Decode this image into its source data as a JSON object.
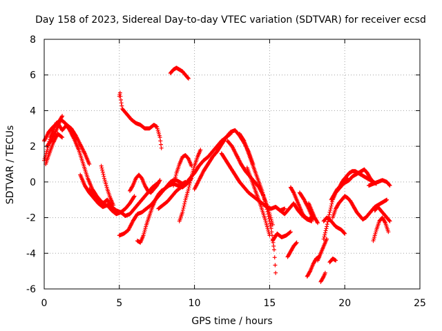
{
  "chart_data": {
    "type": "scatter",
    "title": "Day 158 of 2023, Sidereal Day-to-day VTEC variation (SDTVAR) for receiver ecsd",
    "xlabel": "GPS time / hours",
    "ylabel": "SDTVAR / TECUs",
    "xlim": [
      0,
      25
    ],
    "ylim": [
      -6,
      8
    ],
    "xticks": [
      "0",
      "5",
      "10",
      "15",
      "20",
      "25"
    ],
    "yticks": [
      "-6",
      "-4",
      "-2",
      "0",
      "2",
      "4",
      "6",
      "8"
    ],
    "grid": true,
    "marker": "+",
    "series": [
      {
        "name": "SDTVAR",
        "color": "#ff0000",
        "tracks": [
          {
            "x": [
              0.0,
              0.2,
              0.4,
              0.6,
              0.8,
              1.0,
              1.2
            ],
            "y": [
              1.2,
              1.8,
              2.5,
              2.9,
              3.3,
              3.4,
              3.7
            ]
          },
          {
            "x": [
              0.0,
              0.3,
              0.6,
              0.9,
              1.2,
              1.5,
              1.8,
              2.1,
              2.4,
              2.7,
              3.0
            ],
            "y": [
              2.3,
              2.8,
              3.1,
              3.3,
              2.9,
              3.2,
              3.0,
              2.6,
              2.1,
              1.6,
              1.0
            ]
          },
          {
            "x": [
              0.2,
              0.5,
              0.8,
              1.1,
              1.4,
              1.7,
              2.0,
              2.3,
              2.6,
              2.9,
              3.2,
              3.5,
              3.8,
              4.1,
              4.4
            ],
            "y": [
              2.0,
              2.4,
              2.9,
              3.5,
              3.3,
              2.9,
              2.4,
              1.8,
              1.0,
              0.2,
              -0.4,
              -0.8,
              -1.1,
              -1.3,
              -1.4
            ]
          },
          {
            "x": [
              0.1,
              0.3,
              0.6,
              0.9,
              1.2
            ],
            "y": [
              1.0,
              1.5,
              2.2,
              2.7,
              2.5
            ]
          },
          {
            "x": [
              2.4,
              2.7,
              3.0,
              3.3,
              3.6,
              3.9,
              4.2,
              4.5,
              4.8,
              5.1,
              5.4,
              5.7,
              6.0
            ],
            "y": [
              0.4,
              -0.2,
              -0.6,
              -0.9,
              -1.2,
              -1.4,
              -1.3,
              -1.6,
              -1.8,
              -1.7,
              -1.5,
              -1.2,
              -0.8
            ]
          },
          {
            "x": [
              3.0,
              3.3,
              3.6,
              3.9,
              4.2,
              4.5,
              4.8,
              5.1,
              5.4,
              5.7,
              6.0,
              6.3,
              6.6,
              6.9,
              7.2,
              7.5
            ],
            "y": [
              -0.4,
              -0.8,
              -1.0,
              -1.2,
              -1.0,
              -1.4,
              -1.6,
              -1.7,
              -1.9,
              -1.8,
              -1.5,
              -1.2,
              -0.9,
              -0.6,
              -0.3,
              -0.1
            ]
          },
          {
            "x": [
              3.8,
              4.0,
              4.2,
              4.4,
              4.6
            ],
            "y": [
              0.9,
              0.2,
              -0.4,
              -0.9,
              -1.3
            ]
          },
          {
            "x": [
              5.0,
              5.05,
              5.1,
              5.2,
              5.3,
              5.5,
              5.8,
              6.1,
              6.4,
              6.7,
              7.0,
              7.3,
              7.5,
              7.7,
              7.8
            ],
            "y": [
              4.8,
              5.0,
              4.6,
              4.1,
              4.0,
              3.8,
              3.5,
              3.3,
              3.2,
              3.0,
              3.0,
              3.2,
              3.1,
              2.5,
              1.9
            ]
          },
          {
            "x": [
              8.4,
              8.6,
              8.8,
              9.0,
              9.2,
              9.4,
              9.6
            ],
            "y": [
              6.1,
              6.3,
              6.4,
              6.3,
              6.2,
              6.0,
              5.8
            ]
          },
          {
            "x": [
              5.0,
              5.3,
              5.6,
              5.9,
              6.2,
              6.5,
              6.8,
              7.1,
              7.4,
              7.7,
              8.0,
              8.3,
              8.6,
              8.9,
              9.2,
              9.5,
              9.8
            ],
            "y": [
              -3.0,
              -2.9,
              -2.7,
              -2.2,
              -1.8,
              -1.7,
              -1.5,
              -1.3,
              -1.0,
              -0.7,
              -0.4,
              -0.2,
              -0.1,
              -0.2,
              -0.3,
              -0.1,
              0.2
            ]
          },
          {
            "x": [
              6.2,
              6.4,
              6.6,
              6.8,
              7.0,
              7.2,
              7.4,
              7.6,
              7.8,
              8.0,
              8.2,
              8.4,
              8.6,
              8.8,
              9.0,
              9.2,
              9.4
            ],
            "y": [
              -3.3,
              -3.4,
              -3.0,
              -2.4,
              -1.9,
              -1.4,
              -1.0,
              -0.7,
              -0.5,
              -0.4,
              -0.2,
              0.0,
              0.1,
              0.1,
              0.0,
              -0.1,
              0.0
            ]
          },
          {
            "x": [
              5.7,
              5.9,
              6.1,
              6.3,
              6.5,
              6.7,
              6.9,
              7.1,
              7.3,
              7.5,
              7.7
            ],
            "y": [
              -0.5,
              -0.2,
              0.2,
              0.4,
              0.2,
              -0.2,
              -0.5,
              -0.6,
              -0.4,
              -0.2,
              0.1
            ]
          },
          {
            "x": [
              7.6,
              7.9,
              8.2,
              8.5,
              8.8,
              9.1,
              9.4,
              9.7,
              10.0,
              10.3,
              10.6,
              10.9,
              11.2,
              11.5,
              11.8,
              12.1,
              12.4
            ],
            "y": [
              -1.5,
              -1.3,
              -1.1,
              -0.8,
              -0.5,
              -0.3,
              -0.1,
              0.2,
              0.5,
              0.9,
              1.2,
              1.4,
              1.7,
              2.0,
              2.3,
              2.5,
              2.7
            ]
          },
          {
            "x": [
              9.0,
              9.2,
              9.4,
              9.6,
              9.8,
              10.0,
              10.2,
              10.4
            ],
            "y": [
              -2.2,
              -1.7,
              -1.0,
              -0.4,
              0.3,
              0.9,
              1.4,
              1.8
            ]
          },
          {
            "x": [
              8.6,
              8.8,
              9.0,
              9.2,
              9.4,
              9.6,
              9.8
            ],
            "y": [
              -0.2,
              0.5,
              1.0,
              1.4,
              1.5,
              1.3,
              0.9
            ]
          },
          {
            "x": [
              10.0,
              10.3,
              10.6,
              10.9,
              11.2,
              11.5,
              11.8,
              12.1,
              12.4,
              12.7,
              13.0,
              13.3,
              13.6,
              13.9
            ],
            "y": [
              -0.4,
              0.1,
              0.6,
              1.0,
              1.4,
              1.7,
              2.1,
              2.5,
              2.8,
              2.9,
              2.6,
              2.2,
              1.7,
              1.0
            ]
          },
          {
            "x": [
              11.8,
              12.1,
              12.4,
              12.7,
              13.0,
              13.3,
              13.6,
              13.9,
              14.2,
              14.5,
              14.8,
              15.1,
              15.4,
              15.7,
              16.0
            ],
            "y": [
              1.6,
              1.2,
              0.8,
              0.4,
              0.0,
              -0.3,
              -0.6,
              -0.8,
              -1.0,
              -1.2,
              -1.4,
              -1.5,
              -1.4,
              -1.6,
              -1.5
            ]
          },
          {
            "x": [
              12.2,
              12.5,
              12.8,
              13.1,
              13.4,
              13.7,
              14.0,
              14.3,
              14.6,
              14.9,
              15.2
            ],
            "y": [
              2.3,
              2.0,
              1.5,
              1.0,
              0.6,
              0.3,
              0.0,
              -0.3,
              -0.8,
              -1.5,
              -2.4
            ]
          },
          {
            "x": [
              13.0,
              13.3,
              13.6,
              13.9,
              14.2,
              14.5,
              14.8,
              15.1,
              15.3,
              15.4
            ],
            "y": [
              2.7,
              2.3,
              1.6,
              0.9,
              0.2,
              -0.5,
              -1.4,
              -2.6,
              -3.8,
              -5.1
            ]
          },
          {
            "x": [
              13.5,
              13.8,
              14.1,
              14.4,
              14.7,
              15.0
            ],
            "y": [
              0.8,
              0.1,
              -0.6,
              -1.3,
              -2.1,
              -3.0
            ]
          },
          {
            "x": [
              15.2,
              15.5,
              15.8,
              16.1,
              16.4
            ],
            "y": [
              -3.3,
              -2.9,
              -3.1,
              -3.0,
              -2.8
            ]
          },
          {
            "x": [
              15.4,
              15.7,
              16.0,
              16.3,
              16.6,
              16.9,
              17.2,
              17.5,
              17.8
            ],
            "y": [
              -1.4,
              -1.6,
              -1.8,
              -1.5,
              -1.2,
              -1.6,
              -1.9,
              -2.1,
              -2.2
            ]
          },
          {
            "x": [
              16.2,
              16.4,
              16.6,
              16.8
            ],
            "y": [
              -4.2,
              -3.9,
              -3.6,
              -3.4
            ]
          },
          {
            "x": [
              16.4,
              16.6,
              16.8,
              17.0,
              17.2,
              17.4,
              17.6,
              17.8
            ],
            "y": [
              -0.3,
              -0.6,
              -1.0,
              -1.4,
              -1.8,
              -2.0,
              -2.1,
              -2.0
            ]
          },
          {
            "x": [
              17.0,
              17.3,
              17.6,
              17.9
            ],
            "y": [
              -0.6,
              -1.0,
              -1.5,
              -2.1
            ]
          },
          {
            "x": [
              17.5,
              17.7,
              17.9,
              18.1,
              18.3
            ],
            "y": [
              -5.3,
              -5.0,
              -4.6,
              -4.3,
              -4.2
            ]
          },
          {
            "x": [
              17.6,
              17.8,
              18.0,
              18.2
            ],
            "y": [
              -1.2,
              -1.6,
              -2.0,
              -2.3
            ]
          },
          {
            "x": [
              18.2,
              18.4,
              18.6,
              18.8
            ],
            "y": [
              -4.4,
              -4.0,
              -3.6,
              -3.2
            ]
          },
          {
            "x": [
              18.4,
              18.6,
              18.7
            ],
            "y": [
              -5.6,
              -5.3,
              -5.1
            ]
          },
          {
            "x": [
              19.0,
              19.2,
              19.4
            ],
            "y": [
              -4.5,
              -4.3,
              -4.4
            ]
          },
          {
            "x": [
              18.6,
              18.8,
              19.0,
              19.2,
              19.4,
              19.6,
              19.8,
              20.0,
              20.2
            ],
            "y": [
              -3.2,
              -2.5,
              -1.7,
              -1.0,
              -0.6,
              -0.4,
              -0.2,
              0.0,
              0.2
            ]
          },
          {
            "x": [
              19.1,
              19.3,
              19.5,
              19.7,
              19.9,
              20.1,
              20.3,
              20.5,
              20.7,
              20.9,
              21.1,
              21.3,
              21.5,
              21.7,
              21.9,
              22.1
            ],
            "y": [
              -1.0,
              -0.7,
              -0.4,
              -0.3,
              -0.1,
              0.0,
              0.1,
              0.3,
              0.4,
              0.5,
              0.6,
              0.7,
              0.5,
              0.2,
              0.0,
              -0.1
            ]
          },
          {
            "x": [
              19.5,
              19.7,
              19.9,
              20.1,
              20.3,
              20.5,
              20.7,
              20.9,
              21.1,
              21.3,
              21.5,
              21.7,
              21.9
            ],
            "y": [
              -0.5,
              -0.2,
              0.1,
              0.3,
              0.5,
              0.6,
              0.6,
              0.5,
              0.4,
              0.3,
              0.2,
              0.1,
              0.0
            ]
          },
          {
            "x": [
              19.2,
              19.4,
              19.6,
              19.8,
              20.0,
              20.2,
              20.4,
              20.6,
              20.8,
              21.0,
              21.2,
              21.4,
              21.6,
              21.8,
              22.0,
              22.2,
              22.4,
              22.6,
              22.8
            ],
            "y": [
              -2.0,
              -1.5,
              -1.2,
              -1.0,
              -0.8,
              -0.9,
              -1.1,
              -1.4,
              -1.7,
              -1.9,
              -2.1,
              -2.0,
              -1.8,
              -1.6,
              -1.4,
              -1.3,
              -1.2,
              -1.1,
              -1.0
            ]
          },
          {
            "x": [
              18.6,
              18.8,
              19.0,
              19.2,
              19.4,
              19.6,
              19.8,
              20.0
            ],
            "y": [
              -2.2,
              -2.0,
              -2.1,
              -2.3,
              -2.5,
              -2.6,
              -2.7,
              -2.9
            ]
          },
          {
            "x": [
              21.9,
              22.1,
              22.3,
              22.5,
              22.7,
              22.9
            ],
            "y": [
              -3.3,
              -2.7,
              -2.2,
              -2.0,
              -2.3,
              -2.8
            ]
          },
          {
            "x": [
              22.0,
              22.2,
              22.4,
              22.6,
              22.8,
              23.0
            ],
            "y": [
              -1.6,
              -1.4,
              -1.6,
              -1.8,
              -2.0,
              -2.2
            ]
          },
          {
            "x": [
              21.6,
              21.9,
              22.2,
              22.5,
              22.8,
              23.0
            ],
            "y": [
              -0.2,
              -0.1,
              0.0,
              0.1,
              0.0,
              -0.2
            ]
          }
        ]
      }
    ]
  }
}
